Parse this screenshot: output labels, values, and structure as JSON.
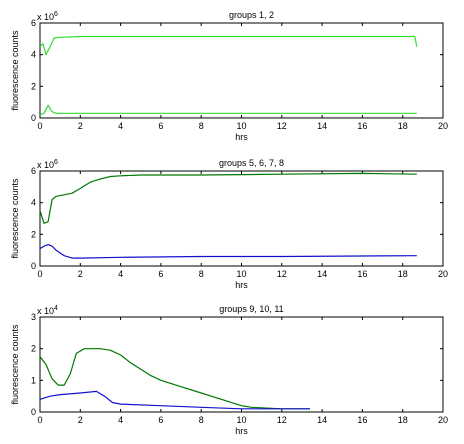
{
  "chart_data": [
    {
      "type": "line",
      "title": "groups 1, 2",
      "xlabel": "",
      "ylabel": "fluorescence counts",
      "xlim": [
        0,
        20
      ],
      "ylim": [
        0,
        6
      ],
      "y_multiplier": "x 10",
      "y_exponent": "6",
      "xticks": [
        "0",
        "2",
        "4",
        "6",
        "8",
        "10",
        "12",
        "14",
        "16",
        "18",
        "20"
      ],
      "yticks": [
        "0",
        "2",
        "4",
        "6"
      ],
      "grid": false,
      "series": [
        {
          "color": "#33dd33",
          "points": [
            [
              0,
              4.5
            ],
            [
              0.15,
              4.7
            ],
            [
              0.3,
              4.0
            ],
            [
              0.5,
              4.5
            ],
            [
              0.7,
              5.05
            ],
            [
              1,
              5.1
            ],
            [
              2,
              5.15
            ],
            [
              4,
              5.15
            ],
            [
              6,
              5.15
            ],
            [
              10,
              5.15
            ],
            [
              14,
              5.15
            ],
            [
              18.6,
              5.15
            ],
            [
              18.7,
              4.5
            ]
          ]
        },
        {
          "color": "#33dd33",
          "points": [
            [
              0,
              0.2
            ],
            [
              0.2,
              0.3
            ],
            [
              0.4,
              0.8
            ],
            [
              0.6,
              0.4
            ],
            [
              0.8,
              0.3
            ],
            [
              1.2,
              0.3
            ],
            [
              3,
              0.3
            ],
            [
              10,
              0.3
            ],
            [
              18.7,
              0.3
            ]
          ]
        }
      ]
    },
    {
      "type": "line",
      "title": "groups 5, 6, 7, 8",
      "xlabel": "",
      "ylabel": "fluorescence counts",
      "xlim": [
        0,
        20
      ],
      "ylim": [
        0,
        6
      ],
      "y_multiplier": "x 10",
      "y_exponent": "6",
      "xticks": [
        "0",
        "2",
        "4",
        "6",
        "8",
        "10",
        "12",
        "14",
        "16",
        "18",
        "20"
      ],
      "yticks": [
        "0",
        "2",
        "4",
        "6"
      ],
      "grid": false,
      "series": [
        {
          "color": "#007700",
          "points": [
            [
              0,
              3.5
            ],
            [
              0.2,
              2.7
            ],
            [
              0.4,
              2.8
            ],
            [
              0.6,
              4.2
            ],
            [
              0.8,
              4.4
            ],
            [
              1.2,
              4.5
            ],
            [
              1.6,
              4.6
            ],
            [
              2,
              4.9
            ],
            [
              2.5,
              5.3
            ],
            [
              3,
              5.5
            ],
            [
              3.5,
              5.65
            ],
            [
              4,
              5.7
            ],
            [
              5,
              5.75
            ],
            [
              8,
              5.75
            ],
            [
              12,
              5.8
            ],
            [
              16,
              5.85
            ],
            [
              18.7,
              5.8
            ]
          ]
        },
        {
          "color": "#1111cc",
          "points": [
            [
              0,
              1.1
            ],
            [
              0.2,
              1.25
            ],
            [
              0.4,
              1.35
            ],
            [
              0.6,
              1.25
            ],
            [
              0.8,
              1.0
            ],
            [
              1.2,
              0.65
            ],
            [
              1.6,
              0.5
            ],
            [
              2,
              0.5
            ],
            [
              4,
              0.55
            ],
            [
              8,
              0.6
            ],
            [
              12,
              0.6
            ],
            [
              18.7,
              0.65
            ]
          ]
        }
      ]
    },
    {
      "type": "line",
      "title": "groups 9, 10, 11",
      "xlabel": "hrs",
      "ylabel": "fluorescence counts",
      "xlim": [
        0,
        20
      ],
      "ylim": [
        0,
        3
      ],
      "y_multiplier": "x 10",
      "y_exponent": "4",
      "xticks": [
        "0",
        "2",
        "4",
        "6",
        "8",
        "10",
        "12",
        "14",
        "16",
        "18",
        "20"
      ],
      "yticks": [
        "0",
        "1",
        "2",
        "3"
      ],
      "grid": false,
      "series": [
        {
          "color": "#007700",
          "points": [
            [
              0,
              1.75
            ],
            [
              0.3,
              1.5
            ],
            [
              0.6,
              1.05
            ],
            [
              0.9,
              0.85
            ],
            [
              1.2,
              0.85
            ],
            [
              1.5,
              1.2
            ],
            [
              1.8,
              1.85
            ],
            [
              2.2,
              2.0
            ],
            [
              3,
              2.0
            ],
            [
              3.5,
              1.95
            ],
            [
              4,
              1.8
            ],
            [
              4.5,
              1.55
            ],
            [
              5,
              1.35
            ],
            [
              5.5,
              1.15
            ],
            [
              6,
              1.0
            ],
            [
              7,
              0.8
            ],
            [
              8,
              0.6
            ],
            [
              9,
              0.4
            ],
            [
              10,
              0.2
            ],
            [
              10.5,
              0.15
            ],
            [
              12,
              0.1
            ],
            [
              13.4,
              0.1
            ]
          ]
        },
        {
          "color": "#1111cc",
          "points": [
            [
              0,
              0.4
            ],
            [
              0.5,
              0.5
            ],
            [
              1,
              0.55
            ],
            [
              2,
              0.6
            ],
            [
              2.8,
              0.65
            ],
            [
              3.2,
              0.5
            ],
            [
              3.6,
              0.3
            ],
            [
              4,
              0.25
            ],
            [
              6,
              0.2
            ],
            [
              8,
              0.15
            ],
            [
              10,
              0.1
            ],
            [
              13.4,
              0.1
            ]
          ]
        }
      ]
    }
  ],
  "panels": [
    {
      "xlabel_text": "hrs"
    },
    {
      "xlabel_text": "hrs"
    },
    {
      "xlabel_text": "hrs"
    }
  ]
}
